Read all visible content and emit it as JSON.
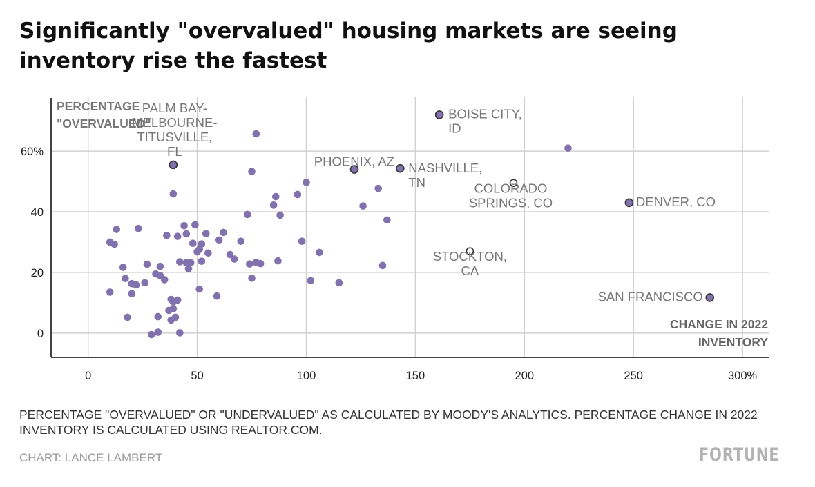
{
  "header": {
    "title": "Significantly \"overvalued\" housing markets are seeing inventory rise the fastest"
  },
  "footer": {
    "note": "PERCENTAGE \"OVERVALUED\" OR \"UNDERVALUED\" AS CALCULATED BY MOODY'S ANALYTICS. PERCENTAGE CHANGE IN 2022 INVENTORY IS CALCULATED USING REALTOR.COM.",
    "credit": "CHART: LANCE LAMBERT",
    "brand": "FORTUNE"
  },
  "colors": {
    "point": "#8172ad",
    "highlight_stroke": "#333333",
    "grid": "#d0d0d0",
    "axis": "#444444",
    "label": "#777777"
  },
  "chart_data": {
    "type": "scatter",
    "ylabel": "PERCENTAGE \"OVERVALUED\"",
    "xlabel": "CHANGE IN 2022 INVENTORY",
    "x_ticks": [
      {
        "value": 0,
        "label": "0"
      },
      {
        "value": 50,
        "label": "50"
      },
      {
        "value": 100,
        "label": "100"
      },
      {
        "value": 150,
        "label": "150"
      },
      {
        "value": 200,
        "label": "200"
      },
      {
        "value": 250,
        "label": "250"
      },
      {
        "value": 300,
        "label": "300%"
      }
    ],
    "y_ticks": [
      {
        "value": 0,
        "label": "0"
      },
      {
        "value": 20,
        "label": "20"
      },
      {
        "value": 40,
        "label": "40"
      },
      {
        "value": 60,
        "label": "60%"
      }
    ],
    "xlim": [
      -17,
      312
    ],
    "ylim": [
      -8,
      78
    ],
    "grid": true,
    "labeled_points": [
      {
        "x": 39,
        "y": 55.5,
        "label": "PALM BAY-MELBOURNE-TITUSVILLE, FL",
        "label_lines": [
          "PALM BAY-",
          "MELBOURNE-",
          "TITUSVILLE,",
          "FL"
        ],
        "style": "filled"
      },
      {
        "x": 161,
        "y": 72,
        "label": "BOISE CITY, ID",
        "label_lines": [
          "BOISE CITY,",
          "ID"
        ],
        "style": "filled"
      },
      {
        "x": 122,
        "y": 54,
        "label": "PHOENIX, AZ",
        "label_lines": [
          "PHOENIX, AZ"
        ],
        "style": "filled"
      },
      {
        "x": 143,
        "y": 54.3,
        "label": "NASHVILLE, TN",
        "label_lines": [
          "NASHVILLE,",
          "TN"
        ],
        "style": "filled"
      },
      {
        "x": 195,
        "y": 49.5,
        "label": "COLORADO SPRINGS, CO",
        "label_lines": [
          "COLORADO",
          "SPRINGS, CO"
        ],
        "style": "hollow"
      },
      {
        "x": 248,
        "y": 43,
        "label": "DENVER, CO",
        "label_lines": [
          "DENVER, CO"
        ],
        "style": "filled"
      },
      {
        "x": 175,
        "y": 27,
        "label": "STOCKTON, CA",
        "label_lines": [
          "STOCKTON,",
          "CA"
        ],
        "style": "hollow"
      },
      {
        "x": 285,
        "y": 11.7,
        "label": "SAN FRANCISCO",
        "label_lines": [
          "SAN FRANCISCO"
        ],
        "style": "filled"
      }
    ],
    "points": [
      {
        "x": 10,
        "y": 30
      },
      {
        "x": 10,
        "y": 13.5
      },
      {
        "x": 12,
        "y": 29.3
      },
      {
        "x": 13,
        "y": 34.2
      },
      {
        "x": 16,
        "y": 21.7
      },
      {
        "x": 17,
        "y": 18
      },
      {
        "x": 18,
        "y": 5.2
      },
      {
        "x": 20,
        "y": 16.3
      },
      {
        "x": 20,
        "y": 13
      },
      {
        "x": 22,
        "y": 15.9
      },
      {
        "x": 23,
        "y": 34.5
      },
      {
        "x": 26,
        "y": 16.6
      },
      {
        "x": 27,
        "y": 22.7
      },
      {
        "x": 29,
        "y": -0.5
      },
      {
        "x": 31,
        "y": 19.5
      },
      {
        "x": 32,
        "y": 0.3
      },
      {
        "x": 32,
        "y": 5.4
      },
      {
        "x": 33,
        "y": 19
      },
      {
        "x": 33,
        "y": 22
      },
      {
        "x": 35,
        "y": 17.6
      },
      {
        "x": 36,
        "y": 32.2
      },
      {
        "x": 37,
        "y": 7.5
      },
      {
        "x": 38,
        "y": 11.1
      },
      {
        "x": 38,
        "y": 4.3
      },
      {
        "x": 39,
        "y": 45.9
      },
      {
        "x": 39,
        "y": 8
      },
      {
        "x": 39,
        "y": 10.3
      },
      {
        "x": 40,
        "y": 5.2
      },
      {
        "x": 41,
        "y": 31.9
      },
      {
        "x": 41,
        "y": 10.9
      },
      {
        "x": 42,
        "y": 23.5
      },
      {
        "x": 42,
        "y": 0.1
      },
      {
        "x": 44,
        "y": 35.4
      },
      {
        "x": 45,
        "y": 23.2
      },
      {
        "x": 45,
        "y": 32.7
      },
      {
        "x": 46,
        "y": 21.2
      },
      {
        "x": 47,
        "y": 23.2
      },
      {
        "x": 48,
        "y": 29.6
      },
      {
        "x": 49,
        "y": 35.7
      },
      {
        "x": 50,
        "y": 26.8
      },
      {
        "x": 51,
        "y": 14.5
      },
      {
        "x": 51,
        "y": 27.6
      },
      {
        "x": 52,
        "y": 23.7
      },
      {
        "x": 52,
        "y": 29.4
      },
      {
        "x": 54,
        "y": 32.8
      },
      {
        "x": 55,
        "y": 26.4
      },
      {
        "x": 59,
        "y": 12.2
      },
      {
        "x": 60,
        "y": 30.7
      },
      {
        "x": 62,
        "y": 33.2
      },
      {
        "x": 65,
        "y": 25.9
      },
      {
        "x": 67,
        "y": 24.4
      },
      {
        "x": 70,
        "y": 30.3
      },
      {
        "x": 73,
        "y": 39.1
      },
      {
        "x": 74,
        "y": 22.8
      },
      {
        "x": 75,
        "y": 53.3
      },
      {
        "x": 75,
        "y": 18.1
      },
      {
        "x": 77,
        "y": 65.7
      },
      {
        "x": 77,
        "y": 23.3
      },
      {
        "x": 79,
        "y": 22.9
      },
      {
        "x": 85,
        "y": 42.2
      },
      {
        "x": 86,
        "y": 45
      },
      {
        "x": 87,
        "y": 23.8
      },
      {
        "x": 88,
        "y": 38.9
      },
      {
        "x": 96,
        "y": 45.7
      },
      {
        "x": 98,
        "y": 30.3
      },
      {
        "x": 100,
        "y": 49.7
      },
      {
        "x": 102,
        "y": 17.3
      },
      {
        "x": 106,
        "y": 26.6
      },
      {
        "x": 115,
        "y": 16.6
      },
      {
        "x": 126,
        "y": 41.9
      },
      {
        "x": 133,
        "y": 47.7
      },
      {
        "x": 135,
        "y": 22.3
      },
      {
        "x": 137,
        "y": 37.3
      },
      {
        "x": 220,
        "y": 61
      }
    ]
  }
}
